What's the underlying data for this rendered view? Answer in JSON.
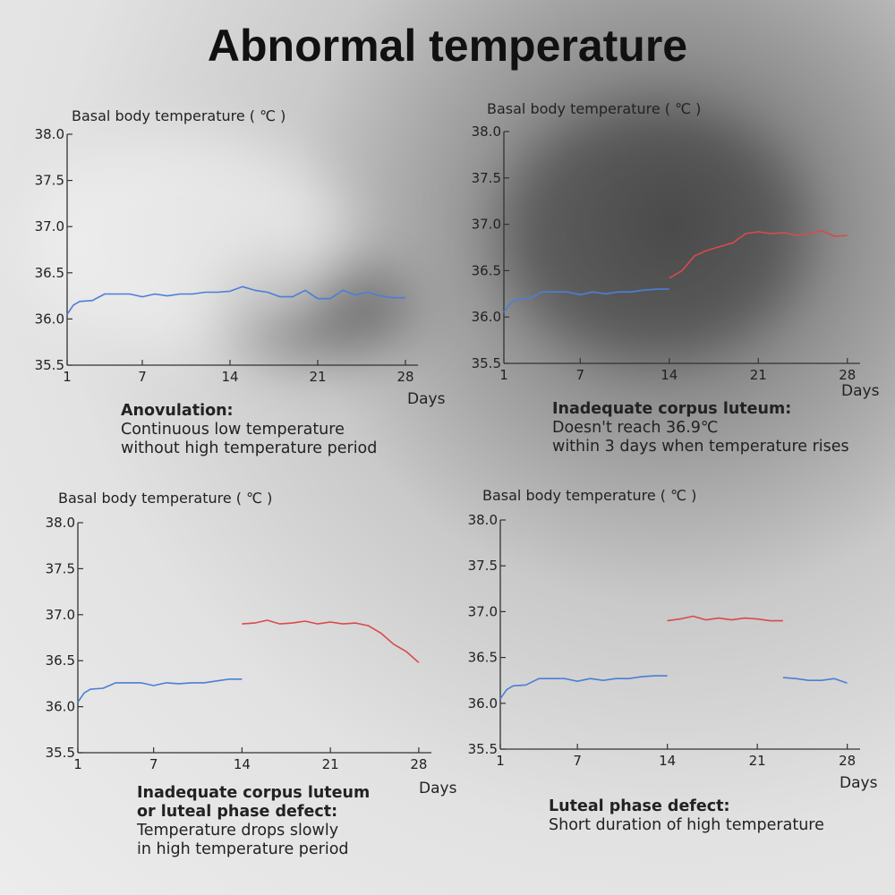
{
  "page": {
    "title": "Abnormal temperature"
  },
  "colors": {
    "low_phase": "#4a7fd6",
    "high_phase": "#d94a4a",
    "axis": "#333333"
  },
  "chart_data": [
    {
      "type": "line",
      "ylabel": "Basal body temperature ( ℃ )",
      "xlabel": "Days",
      "ylim": [
        35.5,
        38.0
      ],
      "xlim": [
        1,
        29
      ],
      "yticks": [
        "35.5",
        "36.0",
        "36.5",
        "37.0",
        "37.5",
        "38.0"
      ],
      "xticks": [
        "1",
        "7",
        "14",
        "21",
        "28"
      ],
      "caption": {
        "head": "Anovulation:",
        "lines": [
          "Continuous low temperature",
          "without high temperature period"
        ]
      },
      "series": [
        {
          "name": "low",
          "color": "#4a7fd6",
          "x": [
            1,
            1.5,
            2,
            3,
            4,
            5,
            6,
            7,
            8,
            9,
            10,
            11,
            12,
            13,
            14,
            15,
            16,
            17,
            18,
            19,
            20,
            21,
            22,
            23,
            24,
            25,
            26,
            27,
            28
          ],
          "y": [
            36.05,
            36.15,
            36.19,
            36.2,
            36.27,
            36.27,
            36.27,
            36.24,
            36.27,
            36.25,
            36.27,
            36.27,
            36.29,
            36.29,
            36.3,
            36.35,
            36.31,
            36.29,
            36.24,
            36.24,
            36.31,
            36.22,
            36.22,
            36.31,
            36.26,
            36.29,
            36.25,
            36.23,
            36.23
          ]
        }
      ]
    },
    {
      "type": "line",
      "ylabel": "Basal body temperature ( ℃ )",
      "xlabel": "Days",
      "ylim": [
        35.5,
        38.0
      ],
      "xlim": [
        1,
        29
      ],
      "yticks": [
        "35.5",
        "36.0",
        "36.5",
        "37.0",
        "37.5",
        "38.0"
      ],
      "xticks": [
        "1",
        "7",
        "14",
        "21",
        "28"
      ],
      "caption": {
        "head": "Inadequate corpus luteum:",
        "lines": [
          "Doesn't reach 36.9℃",
          "within 3 days when temperature rises"
        ]
      },
      "series": [
        {
          "name": "low",
          "color": "#4a7fd6",
          "x": [
            1,
            1.5,
            2,
            3,
            4,
            5,
            6,
            7,
            8,
            9,
            10,
            11,
            12,
            13,
            14
          ],
          "y": [
            36.05,
            36.15,
            36.19,
            36.2,
            36.27,
            36.27,
            36.27,
            36.24,
            36.27,
            36.25,
            36.27,
            36.27,
            36.29,
            36.3,
            36.3
          ]
        },
        {
          "name": "high",
          "color": "#d94a4a",
          "x": [
            14,
            15,
            15.5,
            16,
            17,
            18,
            19,
            20,
            21,
            22,
            23,
            24,
            25,
            26,
            27,
            28
          ],
          "y": [
            36.42,
            36.5,
            36.58,
            36.66,
            36.72,
            36.76,
            36.8,
            36.9,
            36.92,
            36.9,
            36.91,
            36.88,
            36.9,
            36.93,
            36.87,
            36.88
          ]
        }
      ]
    },
    {
      "type": "line",
      "ylabel": "Basal body temperature ( ℃ )",
      "xlabel": "Days",
      "ylim": [
        35.5,
        38.0
      ],
      "xlim": [
        1,
        29
      ],
      "yticks": [
        "35.5",
        "36.0",
        "36.5",
        "37.0",
        "37.5",
        "38.0"
      ],
      "xticks": [
        "1",
        "7",
        "14",
        "21",
        "28"
      ],
      "caption": {
        "head": "Inadequate corpus luteum",
        "head2": "or luteal phase defect:",
        "lines": [
          "Temperature drops slowly",
          "in high temperature period"
        ]
      },
      "series": [
        {
          "name": "low",
          "color": "#4a7fd6",
          "x": [
            1,
            1.5,
            2,
            3,
            4,
            5,
            6,
            7,
            8,
            9,
            10,
            11,
            12,
            13,
            14
          ],
          "y": [
            36.05,
            36.15,
            36.19,
            36.2,
            36.26,
            36.26,
            36.26,
            36.23,
            36.26,
            36.25,
            36.26,
            36.26,
            36.28,
            36.3,
            36.3
          ]
        },
        {
          "name": "high",
          "color": "#d94a4a",
          "x": [
            14,
            15,
            16,
            17,
            18,
            19,
            20,
            21,
            22,
            23,
            24,
            25,
            26,
            27,
            28
          ],
          "y": [
            36.9,
            36.91,
            36.94,
            36.9,
            36.91,
            36.93,
            36.9,
            36.92,
            36.9,
            36.91,
            36.88,
            36.8,
            36.68,
            36.6,
            36.48
          ]
        }
      ]
    },
    {
      "type": "line",
      "ylabel": "Basal body temperature ( ℃ )",
      "xlabel": "Days",
      "ylim": [
        35.5,
        38.0
      ],
      "xlim": [
        1,
        29
      ],
      "yticks": [
        "35.5",
        "36.0",
        "36.5",
        "37.0",
        "37.5",
        "38.0"
      ],
      "xticks": [
        "1",
        "7",
        "14",
        "21",
        "28"
      ],
      "caption": {
        "head": "Luteal phase defect:",
        "lines": [
          "Short duration of high temperature"
        ]
      },
      "series": [
        {
          "name": "low",
          "color": "#4a7fd6",
          "x": [
            1,
            1.5,
            2,
            3,
            4,
            5,
            6,
            7,
            8,
            9,
            10,
            11,
            12,
            13,
            14
          ],
          "y": [
            36.05,
            36.15,
            36.19,
            36.2,
            36.27,
            36.27,
            36.27,
            36.24,
            36.27,
            36.25,
            36.27,
            36.27,
            36.29,
            36.3,
            36.3
          ]
        },
        {
          "name": "high",
          "color": "#d94a4a",
          "x": [
            14,
            15,
            16,
            17,
            18,
            19,
            20,
            21,
            22,
            23
          ],
          "y": [
            36.9,
            36.92,
            36.95,
            36.91,
            36.93,
            36.91,
            36.93,
            36.92,
            36.9,
            36.9
          ]
        },
        {
          "name": "low2",
          "color": "#4a7fd6",
          "x": [
            23,
            24,
            25,
            26,
            27,
            28
          ],
          "y": [
            36.28,
            36.27,
            36.25,
            36.25,
            36.27,
            36.22
          ]
        }
      ]
    }
  ]
}
